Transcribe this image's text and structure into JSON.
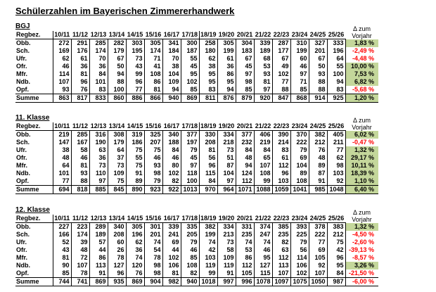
{
  "title": "Schülerzahlen im Bayerischen Zimmererhandwerk",
  "colors": {
    "positive_bg": "#c4d79b",
    "negative_text": "#ff0000",
    "border": "#000000"
  },
  "row_header_label": "Regbez.",
  "delta_header": {
    "line1": "Δ zum",
    "line2": "Vorjahr"
  },
  "years": [
    "10/11",
    "11/12",
    "12/13",
    "13/14",
    "14/15",
    "15/16",
    "16/17",
    "17/18",
    "18/19",
    "19/20",
    "20/21",
    "21/22",
    "22/23",
    "23/24",
    "24/25",
    "25/26"
  ],
  "tables": [
    {
      "label": "BGJ",
      "rows": [
        {
          "label": "Obb.",
          "values": [
            272,
            291,
            285,
            282,
            303,
            305,
            341,
            300,
            258,
            305,
            304,
            339,
            287,
            310,
            327,
            333
          ],
          "delta": "1,83 %"
        },
        {
          "label": "Sch.",
          "values": [
            169,
            176,
            174,
            179,
            195,
            174,
            184,
            187,
            180,
            199,
            183,
            189,
            177,
            199,
            201,
            196
          ],
          "delta": "-2,49 %"
        },
        {
          "label": "Ufr.",
          "values": [
            62,
            61,
            70,
            67,
            73,
            71,
            70,
            55,
            62,
            61,
            67,
            68,
            67,
            60,
            67,
            64
          ],
          "delta": "-4,48 %"
        },
        {
          "label": "Ofr.",
          "values": [
            46,
            36,
            36,
            50,
            43,
            41,
            38,
            45,
            38,
            36,
            45,
            53,
            49,
            46,
            50,
            55
          ],
          "delta": "10,00 %"
        },
        {
          "label": "Mfr.",
          "values": [
            114,
            81,
            84,
            94,
            99,
            108,
            104,
            95,
            95,
            86,
            97,
            93,
            102,
            97,
            93,
            100
          ],
          "delta": "7,53 %"
        },
        {
          "label": "Ndb.",
          "values": [
            107,
            96,
            101,
            88,
            96,
            86,
            109,
            102,
            95,
            95,
            98,
            81,
            77,
            71,
            88,
            94
          ],
          "delta": "6,82 %"
        },
        {
          "label": "Opf.",
          "values": [
            93,
            76,
            83,
            100,
            77,
            81,
            94,
            85,
            83,
            94,
            85,
            97,
            88,
            85,
            88,
            83
          ],
          "delta": "-5,68 %"
        }
      ],
      "summe": {
        "label": "Summe",
        "values": [
          863,
          817,
          833,
          860,
          886,
          866,
          940,
          869,
          811,
          876,
          879,
          920,
          847,
          868,
          914,
          925
        ],
        "delta": "1,20 %"
      }
    },
    {
      "label": "11. Klasse",
      "rows": [
        {
          "label": "Obb.",
          "values": [
            219,
            285,
            316,
            308,
            319,
            325,
            340,
            377,
            330,
            334,
            377,
            406,
            390,
            370,
            382,
            405
          ],
          "delta": "6,02 %"
        },
        {
          "label": "Sch.",
          "values": [
            147,
            167,
            190,
            179,
            186,
            207,
            188,
            197,
            208,
            218,
            232,
            219,
            214,
            222,
            212,
            211
          ],
          "delta": "-0,47 %"
        },
        {
          "label": "Ufr.",
          "values": [
            38,
            58,
            63,
            64,
            75,
            75,
            84,
            79,
            81,
            73,
            84,
            84,
            83,
            79,
            76,
            77
          ],
          "delta": "1,32 %"
        },
        {
          "label": "Ofr.",
          "values": [
            48,
            46,
            36,
            37,
            55,
            46,
            46,
            45,
            56,
            51,
            48,
            65,
            61,
            69,
            48,
            62
          ],
          "delta": "29,17 %"
        },
        {
          "label": "Mfr.",
          "values": [
            64,
            81,
            73,
            73,
            75,
            93,
            80,
            97,
            96,
            87,
            94,
            107,
            112,
            104,
            89,
            98
          ],
          "delta": "10,11 %"
        },
        {
          "label": "Ndb.",
          "values": [
            101,
            93,
            110,
            109,
            91,
            98,
            102,
            118,
            115,
            104,
            124,
            108,
            96,
            89,
            87,
            103
          ],
          "delta": "18,39 %"
        },
        {
          "label": "Opf.",
          "values": [
            77,
            88,
            97,
            75,
            89,
            79,
            82,
            100,
            84,
            97,
            112,
            99,
            103,
            108,
            91,
            92
          ],
          "delta": "1,10 %"
        }
      ],
      "summe": {
        "label": "Summe",
        "values": [
          694,
          818,
          885,
          845,
          890,
          923,
          922,
          1013,
          970,
          964,
          1071,
          1088,
          1059,
          1041,
          985,
          1048
        ],
        "delta": "6,40 %"
      }
    },
    {
      "label": "12. Klasse",
      "rows": [
        {
          "label": "Obb.",
          "values": [
            227,
            223,
            289,
            340,
            305,
            301,
            339,
            335,
            382,
            334,
            331,
            374,
            385,
            393,
            378,
            383
          ],
          "delta": "1,32 %"
        },
        {
          "label": "Sch.",
          "values": [
            166,
            174,
            189,
            208,
            196,
            201,
            241,
            205,
            199,
            213,
            235,
            247,
            235,
            225,
            222,
            212
          ],
          "delta": "-4,50 %"
        },
        {
          "label": "Ufr.",
          "values": [
            52,
            39,
            57,
            60,
            62,
            74,
            69,
            79,
            74,
            73,
            74,
            74,
            82,
            79,
            77,
            75
          ],
          "delta": "-2,60 %"
        },
        {
          "label": "Ofr.",
          "values": [
            43,
            48,
            44,
            26,
            36,
            54,
            44,
            46,
            42,
            58,
            53,
            46,
            63,
            56,
            69,
            42
          ],
          "delta": "-39,13 %"
        },
        {
          "label": "Mfr.",
          "values": [
            81,
            72,
            86,
            78,
            74,
            78,
            102,
            85,
            103,
            109,
            86,
            95,
            112,
            114,
            105,
            96
          ],
          "delta": "-8,57 %"
        },
        {
          "label": "Ndb.",
          "values": [
            90,
            107,
            113,
            127,
            120,
            98,
            106,
            108,
            119,
            119,
            112,
            127,
            113,
            106,
            92,
            95
          ],
          "delta": "3,26 %"
        },
        {
          "label": "Opf.",
          "values": [
            85,
            78,
            91,
            96,
            76,
            98,
            81,
            82,
            99,
            91,
            105,
            115,
            107,
            102,
            107,
            84
          ],
          "delta": "-21,50 %"
        }
      ],
      "summe": {
        "label": "Summe",
        "values": [
          744,
          741,
          869,
          935,
          869,
          904,
          982,
          940,
          1018,
          997,
          996,
          1078,
          1097,
          1075,
          1050,
          987
        ],
        "delta": "-6,00 %"
      }
    }
  ]
}
